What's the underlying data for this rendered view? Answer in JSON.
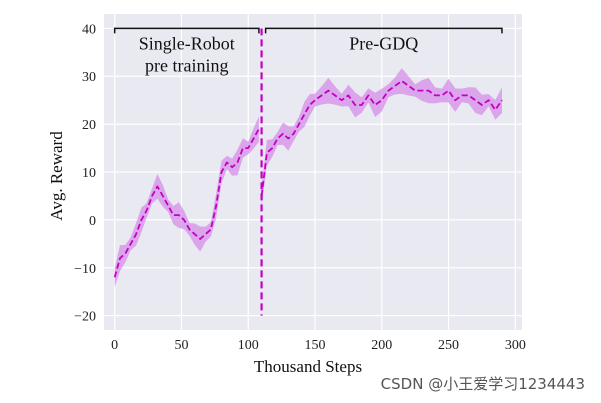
{
  "chart_data": {
    "type": "line",
    "xlabel": "Thousand Steps",
    "ylabel": "Avg. Reward",
    "xlim": [
      -8,
      305
    ],
    "ylim": [
      -23,
      43
    ],
    "xticks": [
      0,
      50,
      100,
      150,
      200,
      250,
      300
    ],
    "yticks": [
      -20,
      -10,
      0,
      10,
      20,
      30,
      40
    ],
    "grid": true,
    "line_color": "#c400c4",
    "band_color": "#d68ee8",
    "plot_background": "#e9e9f1",
    "divider_x": 110,
    "divider_range": [
      -20,
      40
    ],
    "series": [
      {
        "x": [
          0,
          4,
          8,
          12,
          16,
          20,
          24,
          28,
          32,
          36,
          40,
          44,
          48,
          52,
          56,
          60,
          64,
          68,
          72,
          76,
          80,
          84,
          88,
          92,
          96,
          100,
          104,
          108
        ],
        "values": [
          -12,
          -8,
          -7,
          -5,
          -3,
          0,
          2,
          5,
          7,
          5,
          3,
          1,
          1,
          0,
          -2,
          -3,
          -4,
          -3,
          -2,
          3,
          10,
          12,
          11,
          12,
          15,
          15,
          17,
          19
        ],
        "band": 2
      },
      {
        "x": [
          110,
          114,
          118,
          122,
          126,
          130,
          134,
          138,
          142,
          146,
          150,
          155,
          160,
          165,
          170,
          175,
          180,
          185,
          190,
          195,
          200,
          205,
          210,
          215,
          220,
          225,
          230,
          235,
          240,
          245,
          250,
          255,
          260,
          265,
          270,
          275,
          280,
          285,
          290
        ],
        "values": [
          5,
          14,
          15,
          17,
          18,
          17,
          18,
          20,
          22,
          24,
          25,
          26,
          27,
          26,
          25,
          26,
          24,
          24,
          26,
          24,
          25,
          27,
          28,
          29,
          28,
          27,
          27,
          27,
          26,
          26,
          27,
          25,
          26,
          26,
          25,
          24,
          25,
          23,
          25
        ],
        "band": 2
      }
    ],
    "annotations": [
      {
        "text_lines": [
          "Single-Robot",
          "pre training"
        ],
        "bracket": [
          0,
          108
        ],
        "y": 40
      },
      {
        "text_lines": [
          "Pre-GDQ"
        ],
        "bracket": [
          113,
          290
        ],
        "y": 40
      }
    ]
  },
  "watermark": "CSDN @小王爱学习1234443"
}
